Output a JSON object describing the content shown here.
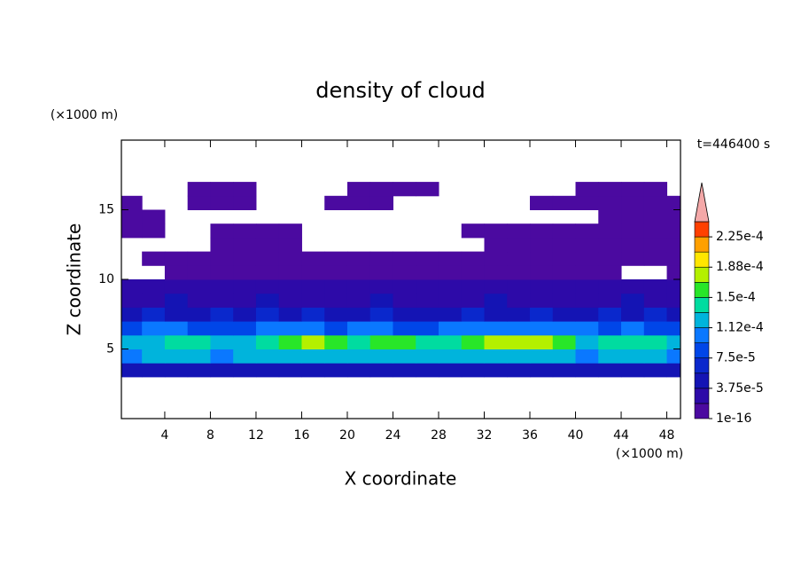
{
  "chart_data": {
    "type": "contour",
    "title": "density of cloud",
    "x_label": "X coordinate",
    "y_label": "Z coordinate",
    "x_unit": "(×1000 m)",
    "y_unit": "(×1000 m)",
    "time_label": "t=446400 s",
    "xlim": [
      0.2,
      49.2
    ],
    "ylim": [
      0,
      20
    ],
    "xticks": [
      4,
      8,
      12,
      16,
      20,
      24,
      28,
      32,
      36,
      40,
      44,
      48
    ],
    "yticks": [
      5,
      10,
      15
    ],
    "x": [
      1,
      3,
      5,
      7,
      9,
      11,
      13,
      15,
      17,
      19,
      21,
      23,
      25,
      27,
      29,
      31,
      33,
      35,
      37,
      39,
      41,
      43,
      45,
      47,
      49
    ],
    "y": [
      3.5,
      4.5,
      5.5,
      6.5,
      7.5,
      8.5,
      9.5,
      10.5,
      11.5,
      12.5,
      13.5,
      14.5,
      15.5,
      16.5
    ],
    "z": [
      [
        5e-05,
        5e-05,
        5e-05,
        5e-05,
        5e-05,
        5e-05,
        5e-05,
        5e-05,
        5e-05,
        5e-05,
        5e-05,
        5e-05,
        5e-05,
        5e-05,
        5e-05,
        5e-05,
        5e-05,
        5e-05,
        5e-05,
        5e-05,
        5e-05,
        5e-05,
        5e-05,
        5e-05,
        5e-05
      ],
      [
        0.0001,
        0.00012,
        0.00012,
        0.00012,
        0.0001,
        0.00012,
        0.00012,
        0.00012,
        0.00012,
        0.00012,
        0.00012,
        0.00012,
        0.00012,
        0.00012,
        0.00012,
        0.00012,
        0.00012,
        0.00012,
        0.00012,
        0.00012,
        0.0001,
        0.00012,
        0.00012,
        0.00012,
        0.0001
      ],
      [
        0.00012,
        0.00012,
        0.00014,
        0.00014,
        0.00012,
        0.00012,
        0.00014,
        0.00016,
        0.00018,
        0.00016,
        0.00014,
        0.00016,
        0.00016,
        0.00014,
        0.00014,
        0.00016,
        0.00018,
        0.00018,
        0.00018,
        0.00016,
        0.00012,
        0.00014,
        0.00014,
        0.00014,
        0.00012
      ],
      [
        8e-05,
        0.0001,
        0.0001,
        8e-05,
        8e-05,
        8e-05,
        0.0001,
        0.0001,
        0.0001,
        8e-05,
        0.0001,
        0.0001,
        8e-05,
        8e-05,
        0.0001,
        0.0001,
        0.0001,
        0.0001,
        0.0001,
        0.0001,
        0.0001,
        8e-05,
        0.0001,
        8e-05,
        8e-05
      ],
      [
        5e-05,
        6e-05,
        5e-05,
        5e-05,
        6e-05,
        5e-05,
        6e-05,
        5e-05,
        6e-05,
        5e-05,
        5e-05,
        6e-05,
        5e-05,
        5e-05,
        5e-05,
        6e-05,
        5e-05,
        5e-05,
        6e-05,
        5e-05,
        5e-05,
        6e-05,
        5e-05,
        6e-05,
        5e-05
      ],
      [
        3e-05,
        3e-05,
        4e-05,
        3e-05,
        3e-05,
        3e-05,
        4e-05,
        3e-05,
        3e-05,
        3e-05,
        3e-05,
        4e-05,
        3e-05,
        3e-05,
        3e-05,
        3e-05,
        4e-05,
        3e-05,
        3e-05,
        3e-05,
        3e-05,
        3e-05,
        4e-05,
        3e-05,
        3e-05
      ],
      [
        2e-05,
        2e-05,
        2e-05,
        2e-05,
        2e-05,
        2e-05,
        2e-05,
        2e-05,
        2e-05,
        2e-05,
        2e-05,
        2e-05,
        2e-05,
        2e-05,
        2e-05,
        2e-05,
        2e-05,
        2e-05,
        2e-05,
        2e-05,
        2e-05,
        2e-05,
        2e-05,
        2e-05,
        2e-05
      ],
      [
        null,
        null,
        1e-05,
        1e-05,
        1e-05,
        1e-05,
        1e-05,
        1e-05,
        1e-05,
        1e-05,
        1e-05,
        1e-05,
        1e-05,
        1e-05,
        1e-05,
        1e-05,
        1e-05,
        1e-05,
        1e-05,
        1e-05,
        1e-05,
        1e-05,
        null,
        null,
        1e-05
      ],
      [
        null,
        1e-05,
        1e-05,
        1e-05,
        1e-05,
        1e-05,
        1e-05,
        1e-05,
        1e-05,
        1e-05,
        1e-05,
        1e-05,
        1e-05,
        1e-05,
        1e-05,
        1e-05,
        1e-05,
        1e-05,
        1e-05,
        1e-05,
        1e-05,
        1e-05,
        1e-05,
        1e-05,
        1e-05
      ],
      [
        null,
        null,
        null,
        null,
        1e-05,
        1e-05,
        1e-05,
        1e-05,
        null,
        null,
        null,
        null,
        null,
        null,
        null,
        null,
        1e-05,
        1e-05,
        1e-05,
        1e-05,
        1e-05,
        1e-05,
        1e-05,
        1e-05,
        1e-05
      ],
      [
        1e-05,
        1e-05,
        null,
        null,
        1e-05,
        1e-05,
        1e-05,
        1e-05,
        null,
        null,
        null,
        null,
        null,
        null,
        null,
        1e-05,
        1e-05,
        1e-05,
        1e-05,
        1e-05,
        1e-05,
        1e-05,
        1e-05,
        1e-05,
        1e-05
      ],
      [
        1e-05,
        1e-05,
        null,
        null,
        null,
        null,
        null,
        null,
        null,
        null,
        null,
        null,
        null,
        null,
        null,
        null,
        null,
        null,
        null,
        null,
        null,
        1e-05,
        1e-05,
        1e-05,
        1e-05
      ],
      [
        1e-05,
        null,
        null,
        1e-05,
        1e-05,
        1e-05,
        null,
        null,
        null,
        1e-05,
        1e-05,
        1e-05,
        null,
        null,
        null,
        null,
        null,
        null,
        1e-05,
        1e-05,
        1e-05,
        1e-05,
        1e-05,
        1e-05,
        1e-05
      ],
      [
        null,
        null,
        null,
        1e-05,
        1e-05,
        1e-05,
        null,
        null,
        null,
        null,
        1e-05,
        1e-05,
        1e-05,
        1e-05,
        null,
        null,
        null,
        null,
        null,
        null,
        1e-05,
        1e-05,
        1e-05,
        1e-05,
        null
      ]
    ],
    "levels": [
      1e-16,
      1.875e-05,
      3.75e-05,
      5.625e-05,
      7.5e-05,
      9.375e-05,
      0.0001125,
      0.00013125,
      0.00015,
      0.00016875,
      0.0001875,
      0.00020625,
      0.000225
    ],
    "colors": [
      "#4b0aa0",
      "#2d0aa8",
      "#1414b4",
      "#0a28cc",
      "#0046e8",
      "#0a78ff",
      "#00b4dc",
      "#00dca0",
      "#28e628",
      "#b4f000",
      "#ffe600",
      "#ffa000",
      "#ff4000"
    ],
    "extend_color": "#f4a8a8",
    "colorbar_ticks": [
      1e-16,
      {
        "value": 3.75e-05,
        "label": "3.75e-5"
      },
      {
        "value": 7.5e-05,
        "label": "7.5e-5"
      },
      {
        "value": 0.0001125,
        "label": "1.12e-4"
      },
      {
        "value": 0.00015,
        "label": "1.5e-4"
      },
      {
        "value": 0.0001875,
        "label": "1.88e-4"
      },
      {
        "value": 0.000225,
        "label": "2.25e-4"
      }
    ]
  }
}
